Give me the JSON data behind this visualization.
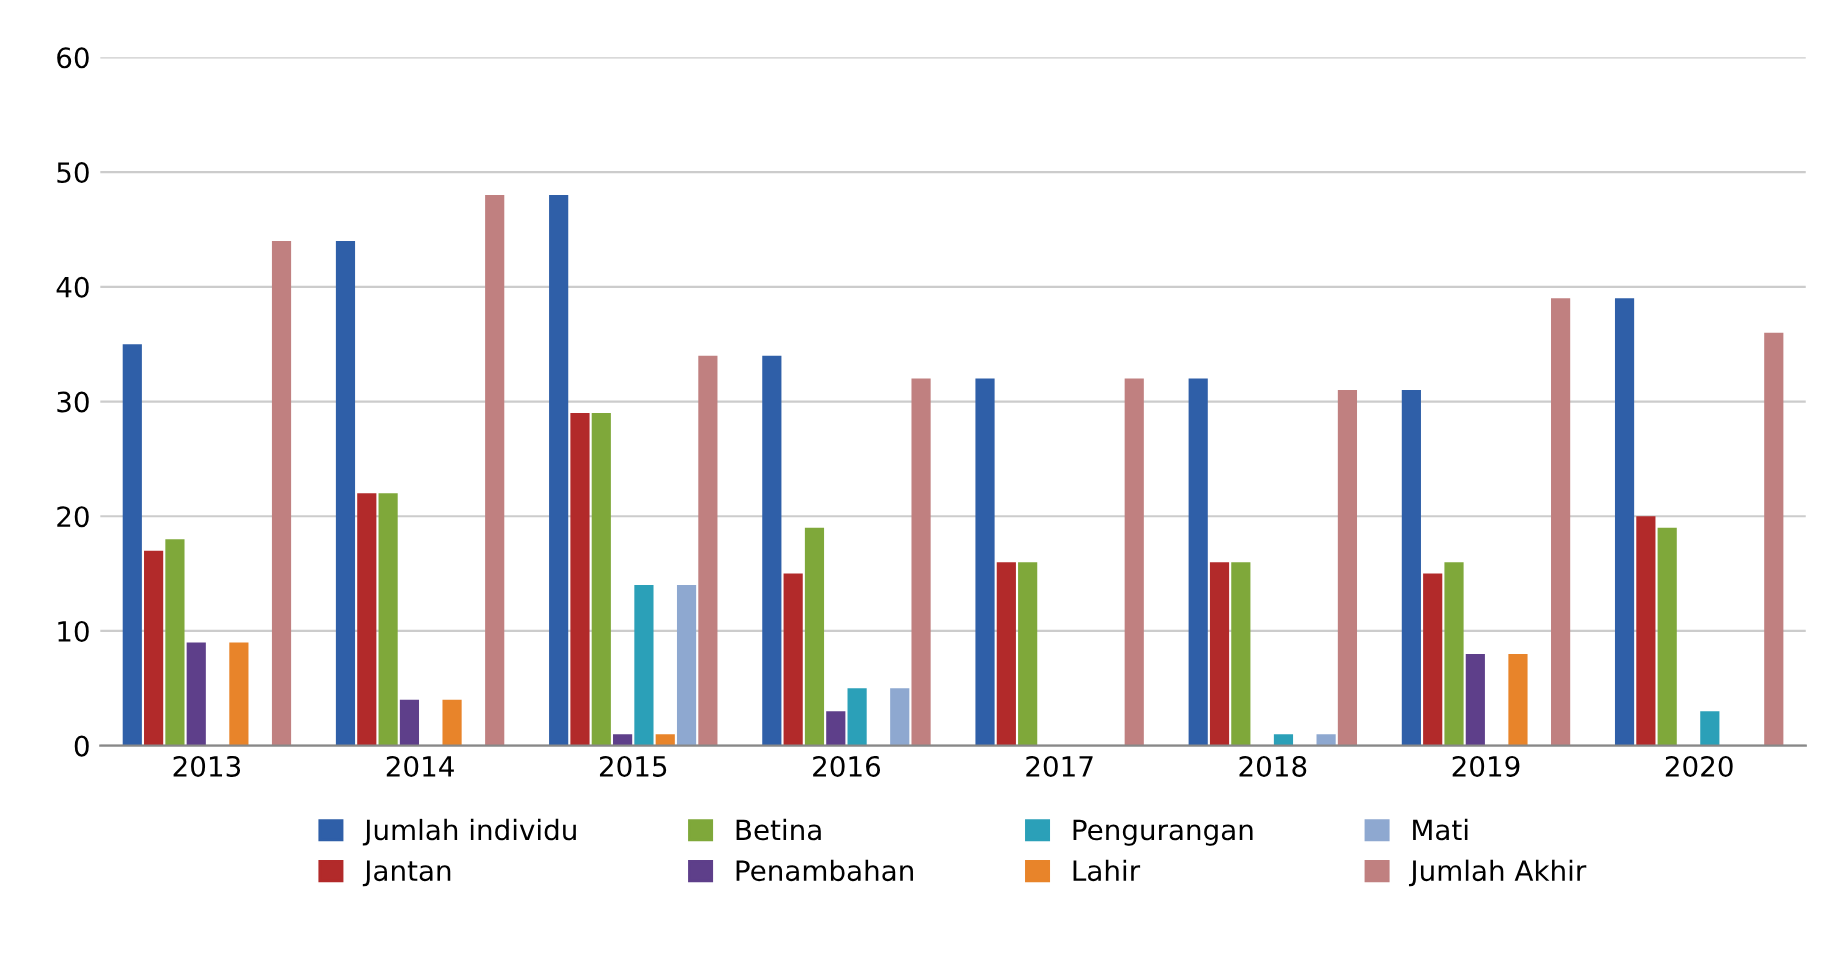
{
  "chart_data": {
    "type": "bar",
    "categories": [
      "2013",
      "2014",
      "2015",
      "2016",
      "2017",
      "2018",
      "2019",
      "2020"
    ],
    "series": [
      {
        "name": "Jumlah individu",
        "color": "#2f5fa8",
        "values": [
          35,
          44,
          48,
          34,
          32,
          32,
          31,
          39
        ]
      },
      {
        "name": "Jantan",
        "color": "#b22a2a",
        "values": [
          17,
          22,
          29,
          15,
          16,
          16,
          15,
          20
        ]
      },
      {
        "name": "Betina",
        "color": "#7fa83a",
        "values": [
          18,
          22,
          29,
          19,
          16,
          16,
          16,
          19
        ]
      },
      {
        "name": "Penambahan",
        "color": "#5e3f8a",
        "values": [
          9,
          4,
          1,
          3,
          0,
          0,
          8,
          0
        ]
      },
      {
        "name": "Pengurangan",
        "color": "#2ba0b8",
        "values": [
          0,
          0,
          14,
          5,
          0,
          1,
          0,
          3
        ]
      },
      {
        "name": "Lahir",
        "color": "#e8842a",
        "values": [
          9,
          4,
          1,
          0,
          0,
          0,
          8,
          0
        ]
      },
      {
        "name": "Mati",
        "color": "#8ea8d0",
        "values": [
          0,
          0,
          14,
          5,
          0,
          1,
          0,
          0
        ]
      },
      {
        "name": "Jumlah Akhir",
        "color": "#c08080",
        "values": [
          44,
          48,
          34,
          32,
          32,
          31,
          39,
          36
        ]
      }
    ],
    "ylim": [
      0,
      60
    ],
    "yticks": [
      0,
      10,
      20,
      30,
      40,
      50,
      60
    ],
    "grid": "y",
    "legend": "bottom"
  }
}
